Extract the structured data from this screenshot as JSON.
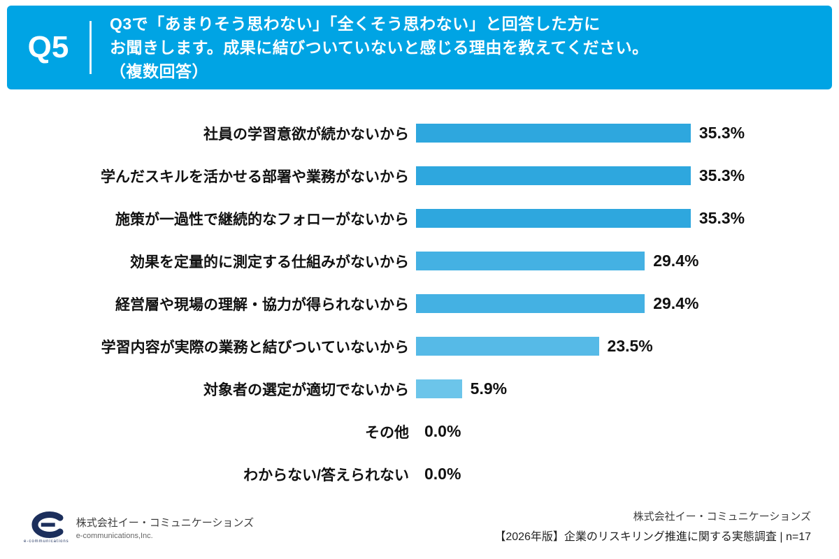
{
  "header": {
    "question_no": "Q5",
    "title_lines": [
      "Q3で「あまりそう思わない」「全くそう思わない」と回答した方に",
      "お聞きします。成果に結びついていないと感じる理由を教えてください。",
      "（複数回答）"
    ]
  },
  "chart_data": {
    "type": "bar",
    "orientation": "horizontal",
    "title": "Q5 成果に結びついていないと感じる理由（複数回答）",
    "categories": [
      "社員の学習意欲が続かないから",
      "学んだスキルを活かせる部署や業務がないから",
      "施策が一過性で継続的なフォローがないから",
      "効果を定量的に測定する仕組みがないから",
      "経営層や現場の理解・協力が得られないから",
      "学習内容が実際の業務と結びついていないから",
      "対象者の選定が適切でないから",
      "その他",
      "わからない/答えられない"
    ],
    "values": [
      35.3,
      35.3,
      35.3,
      29.4,
      29.4,
      23.5,
      5.9,
      0.0,
      0.0
    ],
    "value_labels": [
      "35.3%",
      "35.3%",
      "35.3%",
      "29.4%",
      "29.4%",
      "23.5%",
      "5.9%",
      "0.0%",
      "0.0%"
    ],
    "bar_colors": [
      "#2ea7de",
      "#2ea7de",
      "#2ea7de",
      "#44b1e3",
      "#44b1e3",
      "#56bae7",
      "#6cc5ea",
      "#7fcdee",
      "#7fcdee"
    ],
    "xlim": [
      0,
      40
    ],
    "grid": false,
    "legend": "none",
    "xlabel": "",
    "ylabel": ""
  },
  "footer": {
    "left": {
      "logo": "e-communications-logo",
      "logo_sub": "e-communications",
      "company_name": "株式会社イー・コミュニケーションズ",
      "company_en": "e-communications,Inc."
    },
    "right": {
      "line1": "株式会社イー・コミュニケーションズ",
      "line2": "【2026年版】企業のリスキリング推進に関する実態調査  | n=17"
    }
  },
  "colors": {
    "header_bg": "#00a4e4",
    "text_dark": "#111111",
    "logo_navy": "#1c2f5c"
  }
}
